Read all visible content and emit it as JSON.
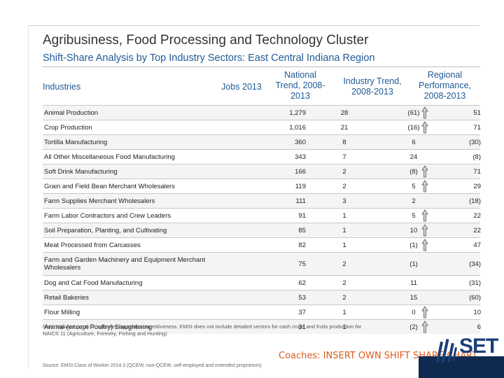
{
  "title": "Agribusiness, Food Processing and Technology Cluster",
  "subtitle": "Shift-Share Analysis by Top Industry Sectors: East Central Indiana Region",
  "headers": {
    "industries": "Industries",
    "jobs": "Jobs 2013",
    "national": "National Trend, 2008-2013",
    "industry": "Industry Trend, 2008-2013",
    "regional": "Regional Performance, 2008-2013"
  },
  "rows": [
    {
      "name": "Animal Production",
      "jobs": "1,279",
      "national": "28",
      "industry": "(61)",
      "regional": "51",
      "up": true
    },
    {
      "name": "Crop Production",
      "jobs": "1,016",
      "national": "21",
      "industry": "(16)",
      "regional": "71",
      "up": true
    },
    {
      "name": "Tortilla Manufacturing",
      "jobs": "360",
      "national": "8",
      "industry": "6",
      "regional": "(30)",
      "up": false
    },
    {
      "name": "All Other Miscellaneous Food Manufacturing",
      "jobs": "343",
      "national": "7",
      "industry": "24",
      "regional": "(8)",
      "up": false
    },
    {
      "name": "Soft Drink Manufacturing",
      "jobs": "166",
      "national": "2",
      "industry": "(8)",
      "regional": "71",
      "up": true
    },
    {
      "name": "Grain and Field Bean Merchant Wholesalers",
      "jobs": "119",
      "national": "2",
      "industry": "5",
      "regional": "29",
      "up": true
    },
    {
      "name": "Farm Supplies Merchant Wholesalers",
      "jobs": "111",
      "national": "3",
      "industry": "2",
      "regional": "(18)",
      "up": false
    },
    {
      "name": "Farm Labor Contractors and Crew Leaders",
      "jobs": "91",
      "national": "1",
      "industry": "5",
      "regional": "22",
      "up": true
    },
    {
      "name": "Soil Preparation, Planting, and Cultivating",
      "jobs": "85",
      "national": "1",
      "industry": "10",
      "regional": "22",
      "up": true
    },
    {
      "name": "Meat Processed from Carcasses",
      "jobs": "82",
      "national": "1",
      "industry": "(1)",
      "regional": "47",
      "up": true
    },
    {
      "name": "Farm and Garden Machinery and Equipment Merchant Wholesalers",
      "jobs": "75",
      "national": "2",
      "industry": "(1)",
      "regional": "(34)",
      "up": false
    },
    {
      "name": "Dog and Cat Food Manufacturing",
      "jobs": "62",
      "national": "2",
      "industry": "11",
      "regional": "(31)",
      "up": false
    },
    {
      "name": "Retail Bakeries",
      "jobs": "53",
      "national": "2",
      "industry": "15",
      "regional": "(60)",
      "up": false
    },
    {
      "name": "Flour Milling",
      "jobs": "37",
      "national": "1",
      "industry": "0",
      "regional": "10",
      "up": true
    },
    {
      "name": "Animal (except Poultry) Slaughtering",
      "jobs": "31",
      "national": "1",
      "industry": "(2)",
      "regional": "6",
      "up": true
    }
  ],
  "note": "Note: Upward arrow ⇧ indicates regional competitiveness. EMSI does not include detailed sectors for cash crops and fruits production for NAICS 11 (Agriculture, Forestry, Fishing and Hunting)",
  "source": "Source: EMSI Class of Worker 2014.3 (QCEW, non-QCEW, self-employed and extended proprietors)",
  "coaches": "Coaches: INSERT OWN SHIFT SHARE CHART",
  "logo_text": "SET",
  "colors": {
    "accent": "#1f5a96",
    "coaches": "#e05a1a",
    "band": "#0f2a4f"
  }
}
